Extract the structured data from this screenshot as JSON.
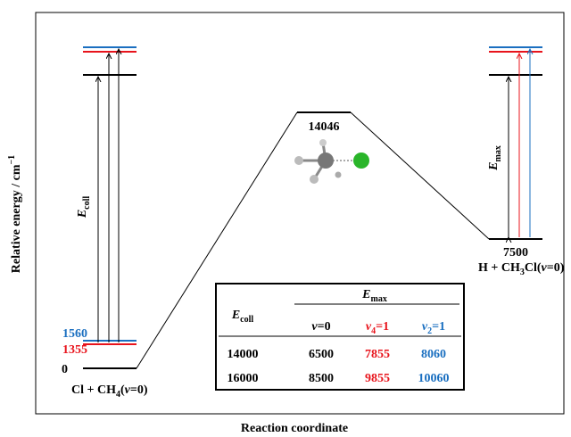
{
  "axis": {
    "y": [
      "Relative energy / cm",
      "−1"
    ],
    "x": "Reaction coordinate"
  },
  "levels": {
    "reactant": "0",
    "v4": "1355",
    "v2": "1560",
    "transition_state": "14046",
    "product": "7500"
  },
  "species": {
    "reactant": [
      "Cl + CH",
      "4",
      "(",
      "v",
      "=0)"
    ],
    "product": [
      "H + CH",
      "3",
      "Cl(",
      "v",
      "=0)"
    ]
  },
  "energies": {
    "collision": [
      "E",
      "coll"
    ],
    "max": [
      "E",
      "max"
    ]
  },
  "table": {
    "columns": [
      [
        "v",
        "=0"
      ],
      [
        "v",
        "4",
        "=1"
      ],
      [
        "v",
        "2",
        "=1"
      ]
    ],
    "rows": [
      [
        "14000",
        "6500",
        "7855",
        "8060"
      ],
      [
        "16000",
        "8500",
        "9855",
        "10060"
      ]
    ]
  }
}
